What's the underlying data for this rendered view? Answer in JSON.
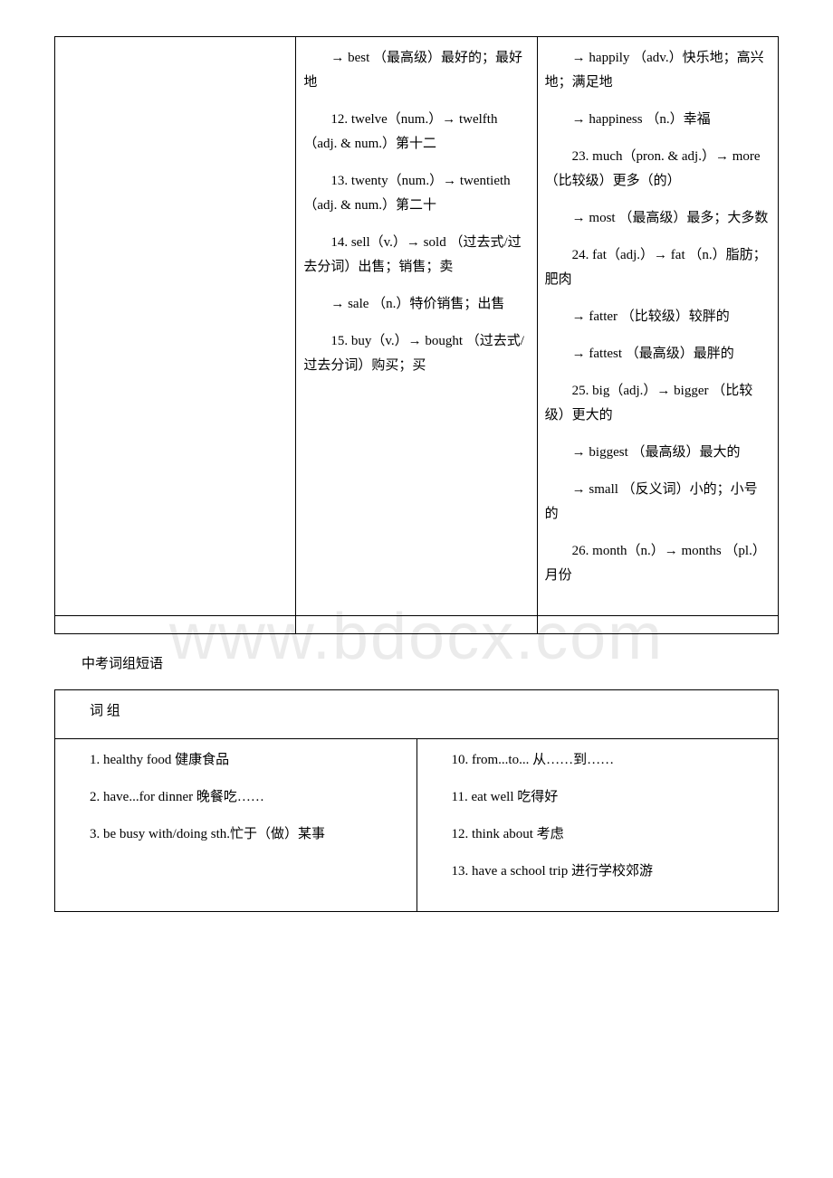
{
  "watermark": "www.bdocx.com",
  "table1": {
    "col2": [
      "→ best （最高级）最好的；最好地",
      "12. twelve（num.）→ twelfth （adj. & num.）第十二",
      "13. twenty（num.）→ twentieth  （adj. & num.）第二十",
      "14. sell（v.）→ sold （过去式/过去分词）出售；销售；卖",
      "→ sale （n.）特价销售；出售",
      "15. buy（v.）→ bought （过去式/过去分词）购买；买"
    ],
    "col3": [
      "→ happily （adv.）快乐地；高兴地；满足地",
      "→ happiness （n.）幸福",
      "23. much（pron. & adj.）→ more （比较级）更多（的）",
      "→ most （最高级）最多；大多数",
      "24. fat（adj.）→ fat （n.）脂肪；肥肉",
      "→ fatter （比较级）较胖的",
      "→ fattest （最高级）最胖的",
      "25. big（adj.）→ bigger （比较级）更大的",
      "→ biggest （最高级）最大的",
      "→ small （反义词）小的；小号的",
      "26. month（n.）→ months （pl.）月份"
    ]
  },
  "sectionTitle": "中考词组短语",
  "table2": {
    "header": "词 组",
    "col1": [
      "1. healthy food 健康食品",
      "2. have...for dinner 晚餐吃……",
      "3. be busy with/doing sth.忙于（做）某事"
    ],
    "col2": [
      "10. from...to... 从……到……",
      "11. eat well 吃得好",
      "12. think about 考虑",
      "13. have a school trip 进行学校郊游"
    ]
  }
}
